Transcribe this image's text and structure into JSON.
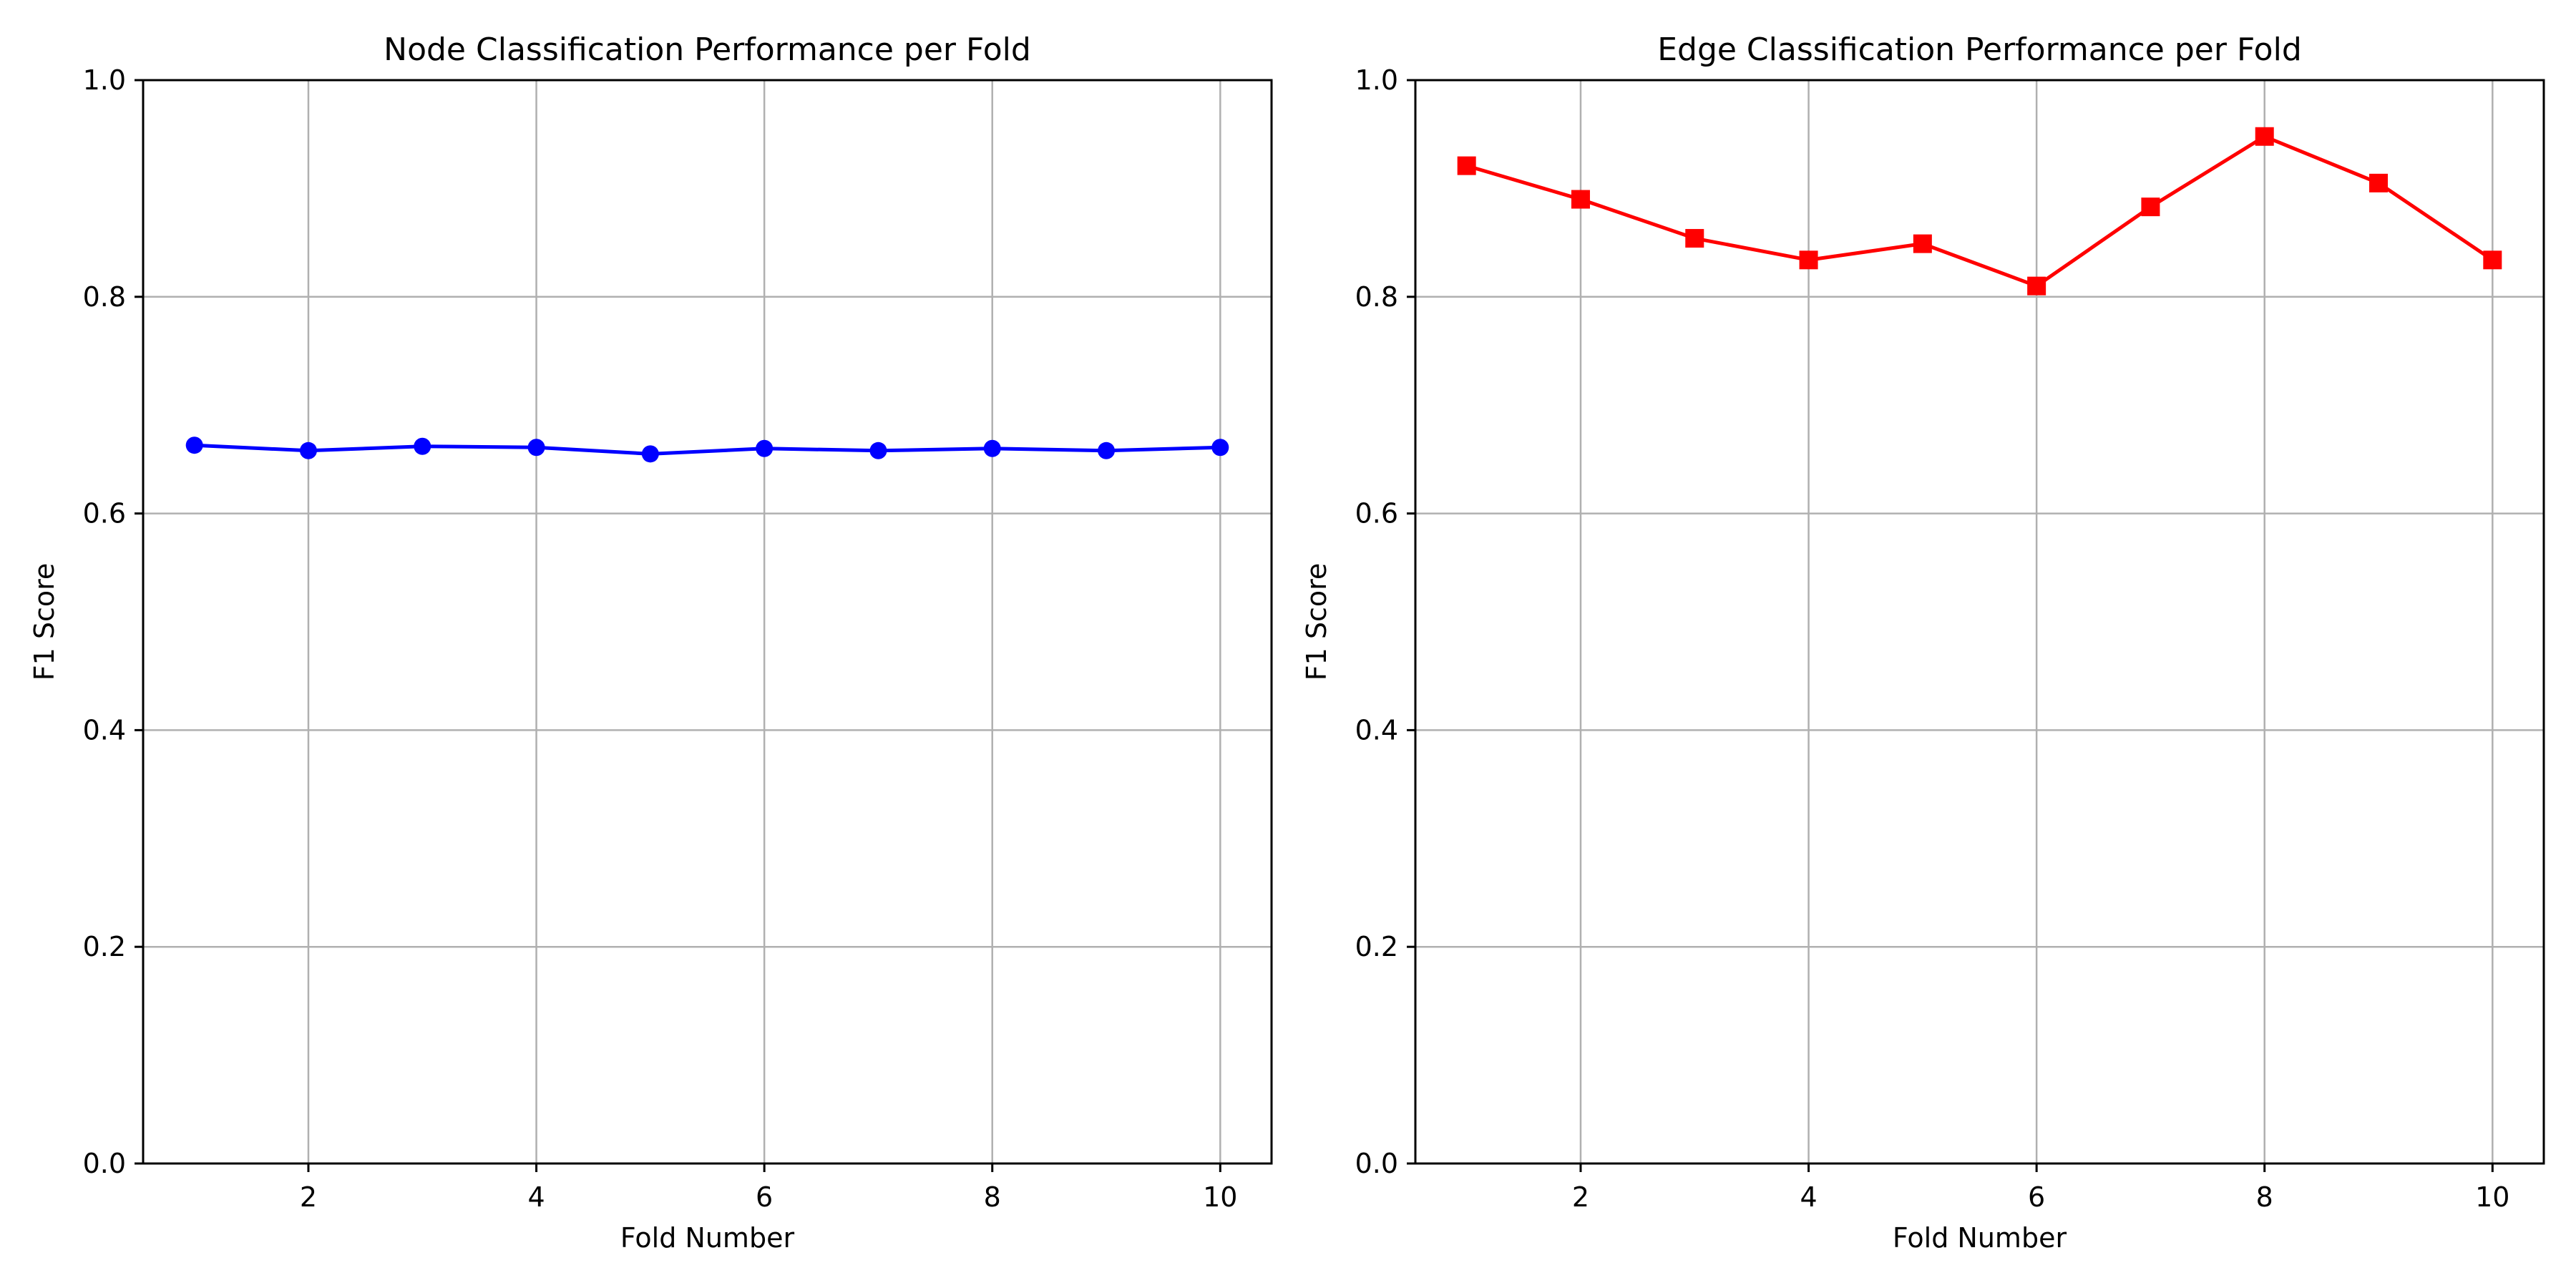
{
  "chart_data": [
    {
      "type": "line",
      "title": "Node Classification Performance per Fold",
      "xlabel": "Fold Number",
      "ylabel": "F1 Score",
      "xlim": [
        0.55,
        10.45
      ],
      "ylim": [
        0.0,
        1.0
      ],
      "xticks": [
        2,
        4,
        6,
        8,
        10
      ],
      "yticks": [
        0.0,
        0.2,
        0.4,
        0.6,
        0.8,
        1.0
      ],
      "grid": true,
      "color": "#0000ff",
      "marker": "circle",
      "x": [
        1,
        2,
        3,
        4,
        5,
        6,
        7,
        8,
        9,
        10
      ],
      "y": [
        0.663,
        0.658,
        0.662,
        0.661,
        0.655,
        0.66,
        0.658,
        0.66,
        0.658,
        0.661
      ]
    },
    {
      "type": "line",
      "title": "Edge Classification Performance per Fold",
      "xlabel": "Fold Number",
      "ylabel": "F1 Score",
      "xlim": [
        0.55,
        10.45
      ],
      "ylim": [
        0.0,
        1.0
      ],
      "xticks": [
        2,
        4,
        6,
        8,
        10
      ],
      "yticks": [
        0.0,
        0.2,
        0.4,
        0.6,
        0.8,
        1.0
      ],
      "grid": true,
      "color": "#ff0000",
      "marker": "square",
      "x": [
        1,
        2,
        3,
        4,
        5,
        6,
        7,
        8,
        9,
        10
      ],
      "y": [
        0.921,
        0.89,
        0.854,
        0.834,
        0.849,
        0.81,
        0.883,
        0.948,
        0.905,
        0.834
      ]
    }
  ]
}
